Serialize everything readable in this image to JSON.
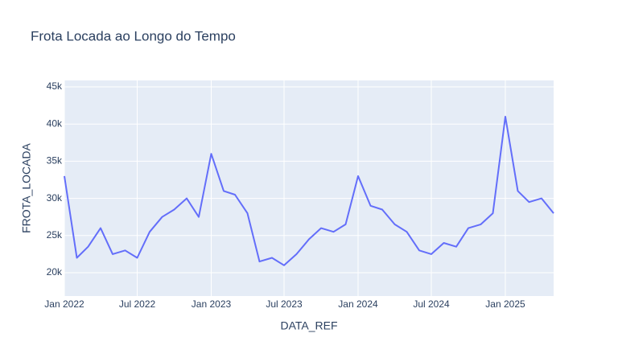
{
  "chart_data": {
    "type": "line",
    "title": "Frota Locada ao Longo do Tempo",
    "x_label": "DATA_REF",
    "y_label": "FROTA_LOCADA",
    "x": [
      "2022-01",
      "2022-02",
      "2022-03",
      "2022-04",
      "2022-05",
      "2022-06",
      "2022-07",
      "2022-08",
      "2022-09",
      "2022-10",
      "2022-11",
      "2022-12",
      "2023-01",
      "2023-02",
      "2023-03",
      "2023-04",
      "2023-05",
      "2023-06",
      "2023-07",
      "2023-08",
      "2023-09",
      "2023-10",
      "2023-11",
      "2023-12",
      "2024-01",
      "2024-02",
      "2024-03",
      "2024-04",
      "2024-05",
      "2024-06",
      "2024-07",
      "2024-08",
      "2024-09",
      "2024-10",
      "2024-11",
      "2024-12",
      "2025-01",
      "2025-02",
      "2025-03",
      "2025-04",
      "2025-05"
    ],
    "series": [
      {
        "name": "FROTA_LOCADA",
        "color": "#636efa",
        "values": [
          33000,
          22000,
          23500,
          26000,
          22500,
          23000,
          22000,
          25500,
          27500,
          28500,
          30000,
          27500,
          36000,
          31000,
          30500,
          28000,
          21500,
          22000,
          21000,
          22500,
          24500,
          26000,
          25500,
          26500,
          33000,
          29000,
          28500,
          26500,
          25500,
          23000,
          22500,
          24000,
          23500,
          26000,
          26500,
          28000,
          41000,
          31000,
          29500,
          30000,
          28000
        ]
      }
    ],
    "xlim": [
      "2022-01",
      "2025-05"
    ],
    "xticks": [
      {
        "value": "2022-01",
        "label": "Jan 2022"
      },
      {
        "value": "2022-07",
        "label": "Jul 2022"
      },
      {
        "value": "2023-01",
        "label": "Jan 2023"
      },
      {
        "value": "2023-07",
        "label": "Jul 2023"
      },
      {
        "value": "2024-01",
        "label": "Jan 2024"
      },
      {
        "value": "2024-07",
        "label": "Jul 2024"
      },
      {
        "value": "2025-01",
        "label": "Jan 2025"
      }
    ],
    "ylim": [
      16860,
      45870
    ],
    "yticks": [
      {
        "value": 20000,
        "label": "20k"
      },
      {
        "value": 25000,
        "label": "25k"
      },
      {
        "value": 30000,
        "label": "30k"
      },
      {
        "value": 35000,
        "label": "35k"
      },
      {
        "value": 40000,
        "label": "40k"
      },
      {
        "value": 45000,
        "label": "45k"
      }
    ],
    "grid": true,
    "plot_background": "#e5ecf6"
  }
}
